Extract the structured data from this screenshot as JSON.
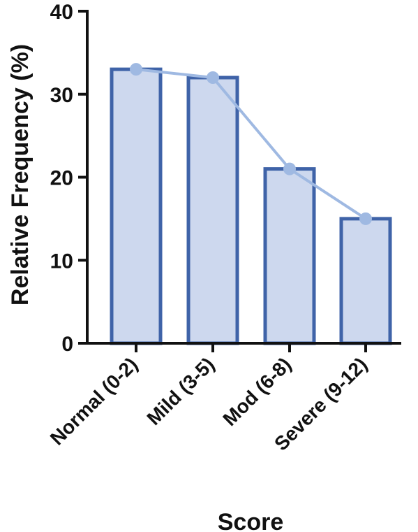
{
  "chart_data": {
    "type": "bar",
    "categories": [
      "Normal (0-2)",
      "Mild (3-5)",
      "Mod (6-8)",
      "Severe (9-12)"
    ],
    "values": [
      33,
      32,
      21,
      15
    ],
    "line_values": [
      33,
      32,
      21,
      15
    ],
    "ylabel": "Relative Frequency (%)",
    "xlabel": "Score",
    "ylim": [
      0,
      40
    ],
    "yticks": [
      0,
      10,
      20,
      30,
      40
    ],
    "grid": false,
    "colors": {
      "bar_fill": "#cdd8ee",
      "bar_stroke": "#3f63a8",
      "line": "#9fb9e2",
      "marker": "#9fb9e2",
      "axis": "#111111"
    }
  }
}
